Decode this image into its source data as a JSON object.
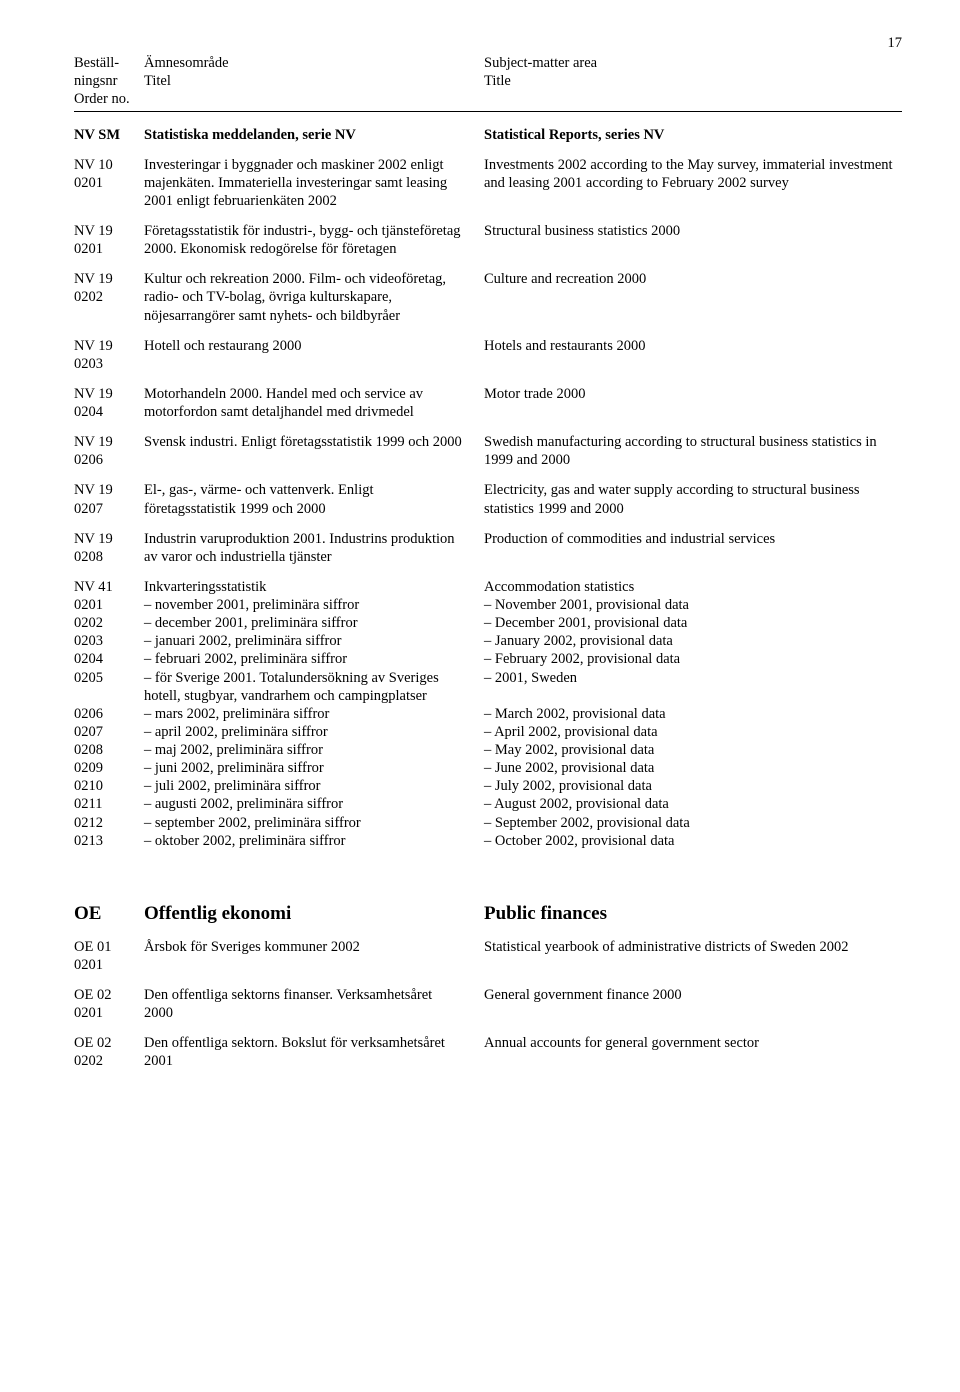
{
  "page_number": "17",
  "header": {
    "l1": "Beställ-",
    "l2": "ningsnr",
    "l3": "Order no.",
    "m1": "Ämnesområde",
    "m2": "Titel",
    "r1": "Subject-matter area",
    "r2": "Title"
  },
  "rows": [
    {
      "code": "NV SM",
      "sv": "Statistiska meddelanden, serie NV",
      "en": "Statistical Reports, series NV",
      "bold": true
    },
    {
      "code": "NV 10 0201",
      "sv": "Investeringar i byggnader och maskiner 2002 enligt majenkäten. Immateriella investeringar samt leasing 2001 enligt februarienkäten 2002",
      "en": "Investments 2002 according to the May survey, immaterial investment and leasing 2001 according to February 2002 survey"
    },
    {
      "code": "NV 19 0201",
      "sv": "Företagsstatistik för industri-, bygg- och tjänsteföretag 2000. Ekonomisk redogörelse för företagen",
      "en": "Structural business statistics 2000"
    },
    {
      "code": "NV 19 0202",
      "sv": "Kultur och rekreation 2000. Film- och videoföretag, radio- och TV-bolag, övriga kulturskapare, nöjesarrangörer samt nyhets- och bildbyråer",
      "en": "Culture and recreation 2000"
    },
    {
      "code": "NV 19 0203",
      "sv": "Hotell och restaurang 2000",
      "en": "Hotels and restaurants 2000"
    },
    {
      "code": "NV 19 0204",
      "sv": "Motorhandeln 2000. Handel med och service av motorfordon samt detaljhandel med drivmedel",
      "en": "Motor trade 2000"
    },
    {
      "code": "NV 19 0206",
      "sv": "Svensk industri. Enligt företagsstatistik 1999 och 2000",
      "en": "Swedish manufacturing according to structural business statistics in 1999 and 2000"
    },
    {
      "code": "NV 19 0207",
      "sv": "El-, gas-, värme- och vattenverk. Enligt företagsstatistik 1999 och 2000",
      "en": "Electricity, gas and water supply according to structural business statistics 1999 and 2000"
    },
    {
      "code": "NV 19 0208",
      "sv": "Industrin varuproduktion 2001. Industrins produktion av varor och industriella tjänster",
      "en": "Production of commodities and industrial services"
    }
  ],
  "nv41": {
    "code": "NV 41",
    "sv": "Inkvarteringsstatistik",
    "en": "Accommodation statistics",
    "items": [
      {
        "c": "0201",
        "sv": "– november 2001, preliminära siffror",
        "en": "– November 2001, provisional data"
      },
      {
        "c": "0202",
        "sv": "– december 2001, preliminära siffror",
        "en": "– December 2001, provisional data"
      },
      {
        "c": "0203",
        "sv": "– januari 2002, preliminära siffror",
        "en": "– January 2002, provisional data"
      },
      {
        "c": "0204",
        "sv": "– februari 2002, preliminära siffror",
        "en": "– February 2002, provisional data"
      },
      {
        "c": "0205",
        "sv": "– för Sverige 2001. Totalundersökning av Sveriges hotell, stugbyar, vandrarhem och campingplatser",
        "en": "– 2001, Sweden"
      },
      {
        "c": "0206",
        "sv": "– mars 2002, preliminära siffror",
        "en": "– March 2002, provisional data"
      },
      {
        "c": "0207",
        "sv": "– april 2002, preliminära siffror",
        "en": "– April 2002, provisional data"
      },
      {
        "c": "0208",
        "sv": "– maj 2002, preliminära siffror",
        "en": "– May 2002, provisional data"
      },
      {
        "c": "0209",
        "sv": "– juni 2002, preliminära siffror",
        "en": "– June 2002, provisional data"
      },
      {
        "c": "0210",
        "sv": "– juli 2002, preliminära siffror",
        "en": "– July 2002, provisional data"
      },
      {
        "c": "0211",
        "sv": "– augusti 2002, preliminära siffror",
        "en": "– August 2002, provisional data"
      },
      {
        "c": "0212",
        "sv": "– september 2002, preliminära siffror",
        "en": "– September 2002, provisional data"
      },
      {
        "c": "0213",
        "sv": "– oktober 2002, preliminära siffror",
        "en": "– October 2002, provisional data"
      }
    ]
  },
  "oe_section": {
    "code": "OE",
    "sv": "Offentlig ekonomi",
    "en": "Public finances"
  },
  "oe_rows": [
    {
      "code": "OE 01 0201",
      "sv": "Årsbok för Sveriges kommuner 2002",
      "en": "Statistical yearbook of administrative districts of Sweden 2002"
    },
    {
      "code": "OE 02 0201",
      "sv": "Den offentliga sektorns finanser. Verksamhetsåret 2000",
      "en": "General government finance 2000"
    },
    {
      "code": "OE 02 0202",
      "sv": "Den offentliga sektorn. Bokslut för verksamhetsåret 2001",
      "en": "Annual accounts for general government sector"
    }
  ]
}
